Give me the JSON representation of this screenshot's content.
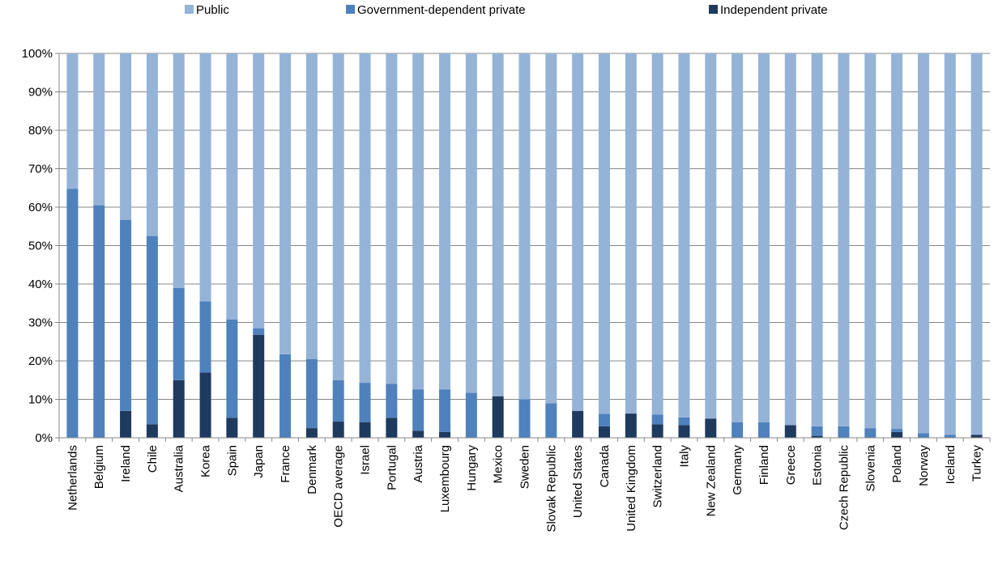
{
  "chart_data": {
    "type": "bar",
    "stacked": true,
    "stack_mode": "percent",
    "title": "",
    "xlabel": "",
    "ylabel": "",
    "ylim": [
      0,
      100
    ],
    "yticks": [
      "0%",
      "10%",
      "20%",
      "30%",
      "40%",
      "50%",
      "60%",
      "70%",
      "80%",
      "90%",
      "100%"
    ],
    "grid": true,
    "legend_position": "top",
    "categories": [
      "Netherlands",
      "Belgium",
      "Ireland",
      "Chile",
      "Australia",
      "Korea",
      "Spain",
      "Japan",
      "France",
      "Denmark",
      "OECD average",
      "Israel",
      "Portugal",
      "Austria",
      "Luxembourg",
      "Hungary",
      "Mexico",
      "Sweden",
      "Slovak Republic",
      "United States",
      "Canada",
      "United Kingdom",
      "Switzerland",
      "Italy",
      "New Zealand",
      "Germany",
      "Finland",
      "Greece",
      "Estonia",
      "Czech Republic",
      "Slovenia",
      "Poland",
      "Norway",
      "Iceland",
      "Turkey"
    ],
    "series": [
      {
        "name": "Independent private",
        "color": "#1f3a5f",
        "values": [
          0,
          0,
          7,
          3.5,
          15,
          17,
          5.2,
          26.8,
          0,
          2.5,
          4.2,
          4,
          5.2,
          1.8,
          1.5,
          0,
          10.8,
          0,
          0,
          7,
          3,
          6.3,
          3.5,
          3.3,
          5,
          0,
          0,
          3.3,
          0.5,
          0,
          0,
          1.5,
          0,
          0,
          0.8
        ]
      },
      {
        "name": "Government-dependent private",
        "color": "#4f81bd",
        "values": [
          64.8,
          60.5,
          49.7,
          49,
          24,
          18.5,
          25.6,
          1.7,
          21.7,
          18,
          10.8,
          10.3,
          8.8,
          10.8,
          11.1,
          11.7,
          0,
          10,
          9,
          0,
          3.2,
          0,
          2.5,
          2,
          0,
          4,
          4,
          0,
          2.5,
          3,
          2.5,
          0.8,
          1.2,
          0.8,
          0
        ]
      },
      {
        "name": "Public",
        "color": "#95b3d7",
        "values": [
          35.2,
          39.5,
          43.3,
          47.5,
          61,
          64.5,
          69.2,
          71.5,
          78.3,
          79.5,
          85,
          85.7,
          86,
          87.4,
          87.4,
          88.3,
          89.2,
          90,
          91,
          93,
          93.8,
          93.7,
          94,
          94.7,
          95,
          96,
          96,
          96.7,
          97,
          97,
          97.5,
          97.7,
          98.8,
          99.2,
          99.2
        ]
      }
    ],
    "legend": [
      {
        "name": "Public",
        "color": "#95b3d7"
      },
      {
        "name": "Government-dependent private",
        "color": "#4f81bd"
      },
      {
        "name": "Independent private",
        "color": "#1f3a5f"
      }
    ]
  }
}
